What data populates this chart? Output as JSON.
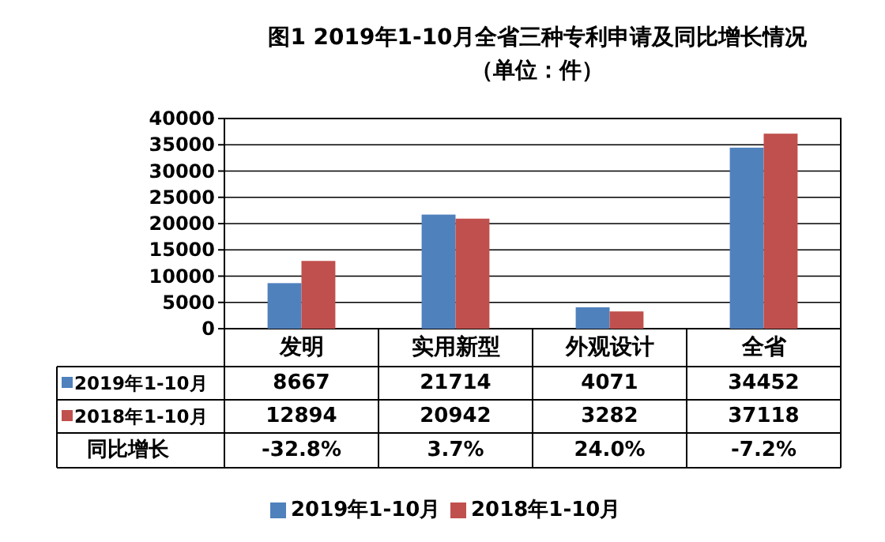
{
  "chart_data": {
    "type": "bar",
    "title": "图1  2019年1-10月全省三种专利申请及同比增长情况",
    "subtitle": "（单位：件）",
    "categories": [
      "发明",
      "实用新型",
      "外观设计",
      "全省"
    ],
    "series": [
      {
        "name": "2019年1-10月",
        "color": "#4f81bd",
        "values": [
          8667,
          21714,
          4071,
          34452
        ]
      },
      {
        "name": "2018年1-10月",
        "color": "#c0504d",
        "values": [
          12894,
          20942,
          3282,
          37118
        ]
      }
    ],
    "ylim": [
      0,
      40000
    ],
    "yticks": [
      0,
      5000,
      10000,
      15000,
      20000,
      25000,
      30000,
      35000,
      40000
    ],
    "grid": "y",
    "data_labels": true,
    "legend": "bottom",
    "annotations": [
      "同比增长",
      "-32.8%",
      "3.7%",
      "24.0%",
      "-7.2%"
    ]
  }
}
